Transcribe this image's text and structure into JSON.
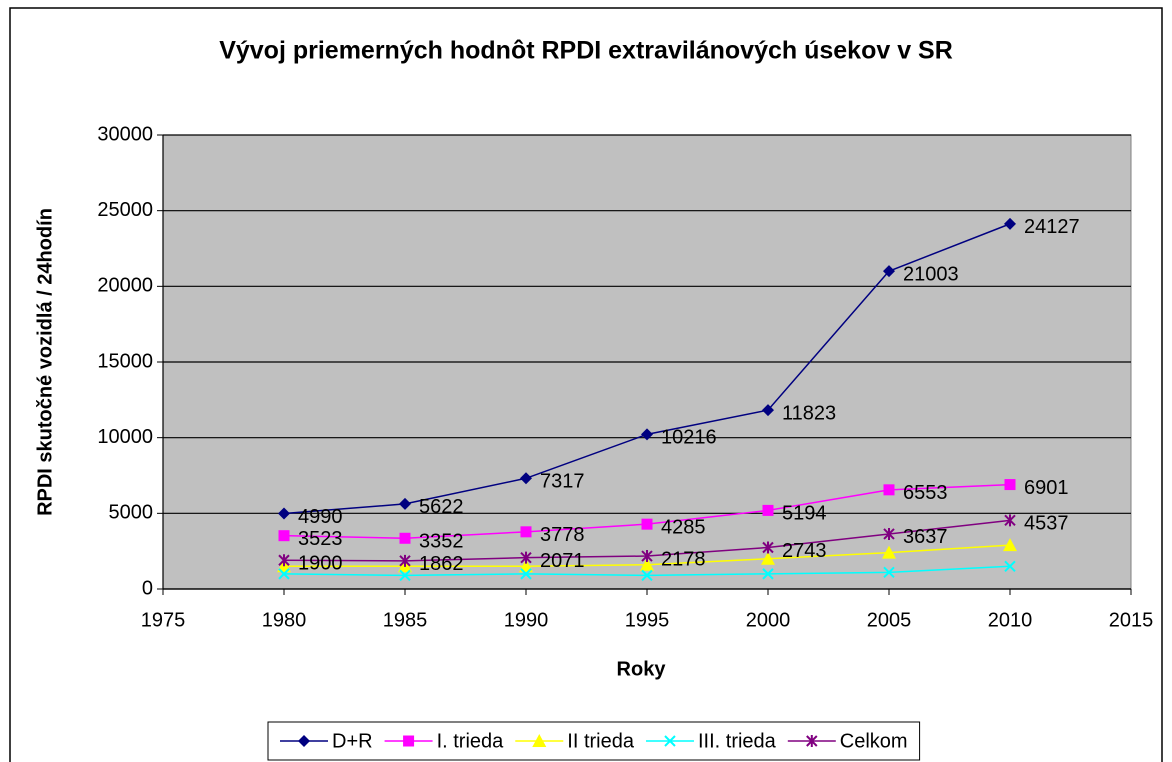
{
  "chart_data": {
    "type": "line",
    "title": "Vývoj priemerných hodnôt RPDI extravilánových úsekov v SR",
    "x_label": "Roky",
    "y_label": "RPDI skutočné vozidlá / 24hodín",
    "x": [
      1980,
      1985,
      1990,
      1995,
      2000,
      2005,
      2010
    ],
    "xlim": [
      1975,
      2015
    ],
    "xticks": [
      1975,
      1980,
      1985,
      1990,
      1995,
      2000,
      2005,
      2010,
      2015
    ],
    "ylim": [
      0,
      30000
    ],
    "yticks": [
      0,
      5000,
      10000,
      15000,
      20000,
      25000,
      30000
    ],
    "grid": true,
    "legend": "bottom",
    "series": [
      {
        "name": "D+R",
        "color": "#000080",
        "marker": "diamond",
        "labels": true,
        "values": [
          4990,
          5622,
          7317,
          10216,
          11823,
          21003,
          24127
        ]
      },
      {
        "name": "I. trieda",
        "color": "#ff00ff",
        "marker": "square",
        "labels": true,
        "values": [
          3523,
          3352,
          3778,
          4285,
          5194,
          6553,
          6901
        ]
      },
      {
        "name": "II trieda",
        "color": "#ffff00",
        "marker": "triangle",
        "labels": false,
        "values": [
          1500,
          1500,
          1500,
          1600,
          2000,
          2400,
          2900
        ]
      },
      {
        "name": "III. trieda",
        "color": "#00ffff",
        "marker": "x",
        "labels": false,
        "values": [
          1000,
          900,
          1000,
          900,
          1000,
          1100,
          1500
        ]
      },
      {
        "name": "Celkom",
        "color": "#800080",
        "marker": "star",
        "labels": true,
        "values": [
          1900,
          1862,
          2071,
          2178,
          2743,
          3637,
          4537
        ]
      }
    ]
  }
}
